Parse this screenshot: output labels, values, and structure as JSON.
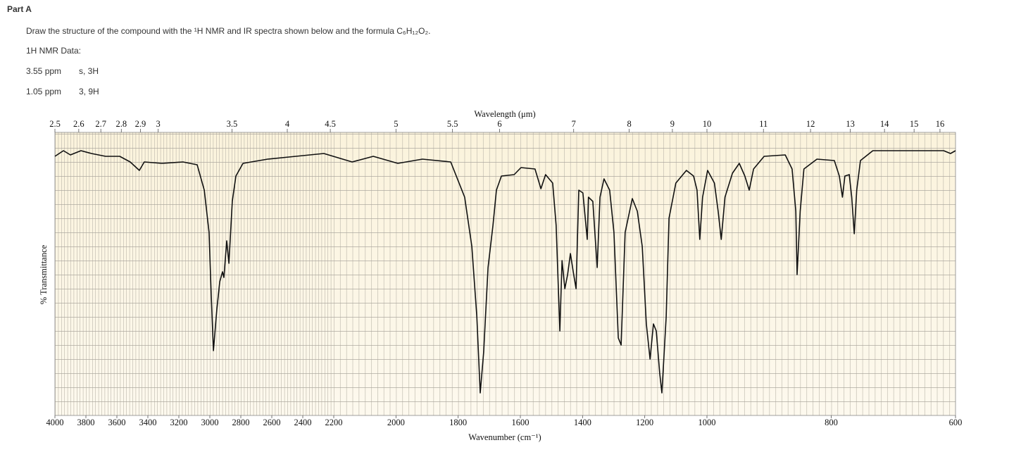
{
  "header": {
    "title": "Part A"
  },
  "question": "Draw the structure of the compound with the ¹H NMR and IR spectra shown below and the formula C₆H₁₂O₂.",
  "nmr": {
    "title": "1H NMR Data:",
    "rows": [
      [
        "3.55 ppm",
        "s, 3H"
      ],
      [
        "1.05 ppm",
        "3, 9H"
      ]
    ]
  },
  "chart_data": {
    "type": "line",
    "x_label": "Wavenumber (cm⁻¹)",
    "x2_label": "Wavelength (μm)",
    "y_label": "% Transmittance",
    "xlim": [
      4000,
      600
    ],
    "xbreaks": [
      2200,
      1000
    ],
    "ylim": [
      0,
      100
    ],
    "grid": true,
    "color": "#111111",
    "xticks": [
      4000,
      3800,
      3600,
      3400,
      3200,
      3000,
      2800,
      2600,
      2400,
      2200,
      2000,
      1800,
      1600,
      1400,
      1200,
      1000,
      800,
      600
    ],
    "x2ticks": [
      2.5,
      2.6,
      2.7,
      2.8,
      2.9,
      3,
      3.5,
      4,
      4.5,
      5,
      5.5,
      6,
      7,
      8,
      9,
      10,
      11,
      12,
      13,
      14,
      15,
      16
    ],
    "x": [
      4000,
      3945,
      3900,
      3832,
      3764,
      3673,
      3582,
      3514,
      3455,
      3423,
      3309,
      3173,
      3082,
      3036,
      3005,
      2991,
      2977,
      2955,
      2936,
      2918,
      2909,
      2891,
      2877,
      2855,
      2832,
      2786,
      2627,
      2445,
      2264,
      2141,
      2073,
      1994,
      1915,
      1824,
      1779,
      1756,
      1740,
      1729,
      1718,
      1704,
      1688,
      1677,
      1661,
      1620,
      1598,
      1553,
      1534,
      1519,
      1496,
      1485,
      1473,
      1466,
      1457,
      1448,
      1439,
      1430,
      1421,
      1412,
      1399,
      1385,
      1381,
      1367,
      1353,
      1344,
      1331,
      1313,
      1299,
      1285,
      1276,
      1263,
      1240,
      1224,
      1208,
      1195,
      1183,
      1172,
      1163,
      1152,
      1145,
      1131,
      1122,
      1100,
      1066,
      1043,
      1032,
      1023,
      1014,
      999,
      988,
      982,
      977,
      971,
      959,
      948,
      939,
      932,
      925,
      908,
      874,
      863,
      857,
      855,
      850,
      844,
      823,
      795,
      787,
      782,
      778,
      771,
      767,
      763,
      759,
      753,
      733,
      665,
      619,
      608,
      600
    ],
    "values": [
      92,
      94,
      92.5,
      94,
      93,
      92,
      92,
      90,
      87,
      90,
      89.5,
      90,
      89,
      80,
      65,
      42.5,
      23,
      37.5,
      47.5,
      51,
      49,
      62,
      54,
      76,
      85,
      89.5,
      91,
      92,
      93,
      90,
      92,
      89.5,
      91,
      90,
      77.5,
      60,
      35,
      8,
      22.5,
      52.5,
      67.5,
      80,
      85,
      85.5,
      88,
      87.5,
      80.5,
      85.5,
      82.5,
      67.5,
      30,
      55,
      45,
      50,
      57.5,
      51,
      45,
      80,
      79,
      62.5,
      77.5,
      76,
      52.5,
      77.5,
      84,
      80,
      65,
      27.5,
      25,
      65,
      77,
      72.5,
      60,
      32.5,
      20,
      32.5,
      30,
      15,
      8,
      35,
      70,
      82.5,
      87,
      85,
      80,
      62.5,
      77.5,
      87,
      82.5,
      72.5,
      62.5,
      77.5,
      86,
      89.5,
      85,
      80,
      87.5,
      92,
      92.5,
      87.5,
      72.5,
      50,
      72.5,
      87.5,
      91,
      90.5,
      85,
      77.5,
      85,
      85.5,
      77.5,
      64.5,
      80,
      90.5,
      94,
      94,
      94,
      93,
      94
    ]
  }
}
